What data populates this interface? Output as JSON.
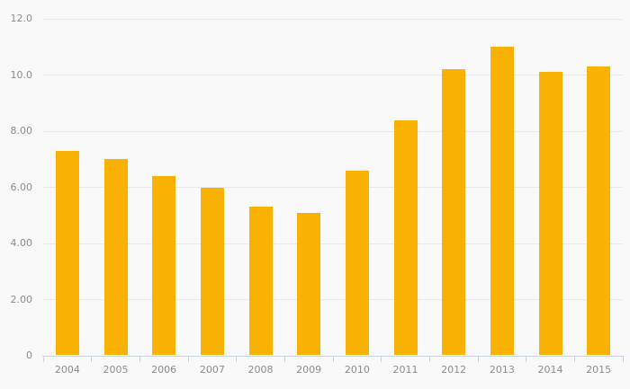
{
  "chart_data": {
    "type": "bar",
    "title": "",
    "xlabel": "",
    "ylabel": "",
    "categories": [
      "2004",
      "2005",
      "2006",
      "2007",
      "2008",
      "2009",
      "2010",
      "2011",
      "2012",
      "2013",
      "2014",
      "2015"
    ],
    "values": [
      7.3,
      7.0,
      6.4,
      6.0,
      5.3,
      5.1,
      6.6,
      8.4,
      10.2,
      11.0,
      10.1,
      10.3
    ],
    "y_axis": {
      "min": 0,
      "max": 12,
      "tick_interval": 2,
      "tick_labels": [
        "0",
        "2.00",
        "4.00",
        "6.00",
        "8.00",
        "10.0",
        "12.0"
      ]
    },
    "grid": true,
    "legend": "none",
    "colors": {
      "bar": "#F9B104",
      "grid_line": "#E9E9E9",
      "axis_line": "#C9D4E4",
      "label_text": "#8C8C8C",
      "background": "#F9F9F9"
    }
  }
}
